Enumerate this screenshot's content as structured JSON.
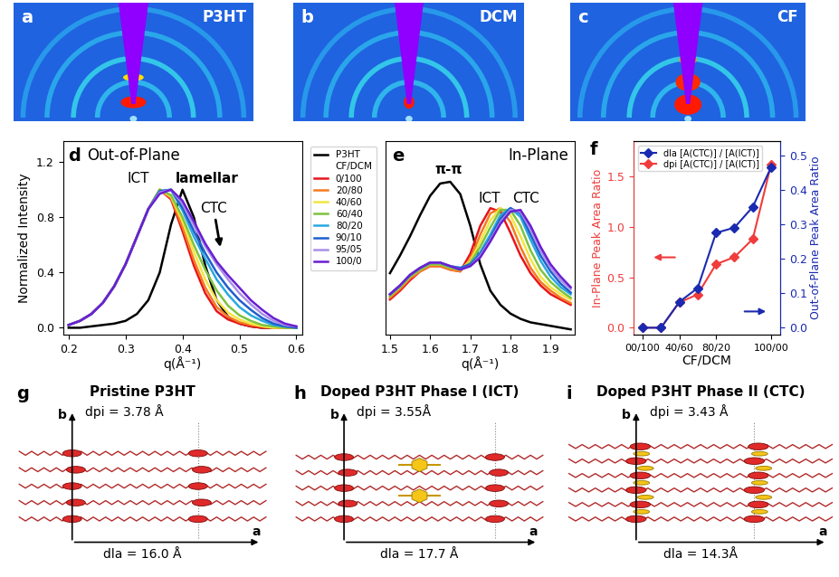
{
  "images": [
    {
      "label": "a",
      "title": "P3HT"
    },
    {
      "label": "b",
      "title": "DCM"
    },
    {
      "label": "c",
      "title": "CF"
    }
  ],
  "chart_data": [
    {
      "label": "d",
      "type": "line",
      "title": "Out-of-Plane",
      "xlabel": "q(Å⁻¹)",
      "ylabel": "Normalized Intensity",
      "annotations": [
        "ICT",
        "lamellar",
        "CTC"
      ],
      "legend_header": "CF/DCM",
      "x": [
        0.2,
        0.22,
        0.24,
        0.26,
        0.28,
        0.3,
        0.32,
        0.34,
        0.36,
        0.38,
        0.4,
        0.42,
        0.44,
        0.46,
        0.48,
        0.5,
        0.52,
        0.54,
        0.56,
        0.58,
        0.6
      ],
      "xlim": [
        0.19,
        0.61
      ],
      "xticks": [
        0.2,
        0.3,
        0.4,
        0.5,
        0.6
      ],
      "ylim": [
        -0.05,
        1.35
      ],
      "yticks": [
        0.0,
        0.4,
        0.8,
        1.2
      ],
      "series": [
        {
          "name": "P3HT",
          "color": "#000000",
          "values": [
            0,
            0,
            0.01,
            0.02,
            0.03,
            0.05,
            0.1,
            0.2,
            0.4,
            0.75,
            1.0,
            0.8,
            0.45,
            0.2,
            0.08,
            0.03,
            0.01,
            0,
            0,
            0,
            0
          ]
        },
        {
          "name": "0/100",
          "color": "#e8151b",
          "values": [
            0.02,
            0.05,
            0.1,
            0.18,
            0.3,
            0.46,
            0.66,
            0.86,
            1.0,
            0.93,
            0.7,
            0.45,
            0.25,
            0.12,
            0.06,
            0.03,
            0.01,
            0,
            0,
            0,
            0
          ]
        },
        {
          "name": "20/80",
          "color": "#f47b20",
          "values": [
            0.02,
            0.05,
            0.1,
            0.18,
            0.3,
            0.46,
            0.66,
            0.86,
            1.0,
            0.94,
            0.73,
            0.49,
            0.29,
            0.15,
            0.08,
            0.04,
            0.02,
            0.01,
            0,
            0,
            0
          ]
        },
        {
          "name": "40/60",
          "color": "#f2e640",
          "values": [
            0.02,
            0.05,
            0.1,
            0.18,
            0.3,
            0.46,
            0.66,
            0.86,
            1.0,
            0.95,
            0.77,
            0.55,
            0.35,
            0.2,
            0.11,
            0.06,
            0.03,
            0.01,
            0,
            0,
            0
          ]
        },
        {
          "name": "60/40",
          "color": "#7dc242",
          "values": [
            0.02,
            0.05,
            0.1,
            0.18,
            0.3,
            0.46,
            0.66,
            0.86,
            1.0,
            0.96,
            0.8,
            0.6,
            0.42,
            0.27,
            0.16,
            0.09,
            0.05,
            0.02,
            0.01,
            0,
            0
          ]
        },
        {
          "name": "80/20",
          "color": "#29a9e0",
          "values": [
            0.02,
            0.05,
            0.1,
            0.18,
            0.3,
            0.46,
            0.66,
            0.86,
            0.99,
            1.0,
            0.85,
            0.66,
            0.5,
            0.35,
            0.24,
            0.15,
            0.09,
            0.05,
            0.02,
            0.01,
            0
          ]
        },
        {
          "name": "90/10",
          "color": "#1f5fce",
          "values": [
            0.02,
            0.05,
            0.1,
            0.18,
            0.3,
            0.46,
            0.66,
            0.86,
            0.99,
            1.0,
            0.87,
            0.7,
            0.54,
            0.4,
            0.29,
            0.2,
            0.13,
            0.07,
            0.03,
            0.01,
            0
          ]
        },
        {
          "name": "95/05",
          "color": "#a890e8",
          "values": [
            0.02,
            0.05,
            0.1,
            0.18,
            0.3,
            0.46,
            0.66,
            0.86,
            0.98,
            1.0,
            0.9,
            0.74,
            0.59,
            0.46,
            0.35,
            0.25,
            0.17,
            0.1,
            0.05,
            0.02,
            0.01
          ]
        },
        {
          "name": "100/0",
          "color": "#6a1fd0",
          "values": [
            0.02,
            0.05,
            0.1,
            0.18,
            0.3,
            0.46,
            0.66,
            0.86,
            0.97,
            1.0,
            0.92,
            0.77,
            0.61,
            0.48,
            0.38,
            0.29,
            0.2,
            0.13,
            0.07,
            0.03,
            0.01
          ]
        }
      ]
    },
    {
      "label": "e",
      "type": "line",
      "title": "In-Plane",
      "xlabel": "q(Å⁻¹)",
      "annotations": [
        "π-π",
        "ICT",
        "CTC"
      ],
      "tick_labels": "x",
      "x": [
        1.5,
        1.525,
        1.55,
        1.575,
        1.6,
        1.625,
        1.65,
        1.675,
        1.7,
        1.725,
        1.75,
        1.775,
        1.8,
        1.825,
        1.85,
        1.875,
        1.9,
        1.925,
        1.95
      ],
      "xlim": [
        1.49,
        1.96
      ],
      "xticks": [
        1.5,
        1.6,
        1.7,
        1.8,
        1.9
      ],
      "ylim": [
        0.1,
        1.2
      ],
      "yticks": [],
      "series": [
        {
          "name": "P3HT",
          "color": "#000000",
          "values": [
            0.45,
            0.55,
            0.66,
            0.78,
            0.89,
            0.96,
            0.97,
            0.9,
            0.72,
            0.5,
            0.35,
            0.27,
            0.22,
            0.19,
            0.17,
            0.16,
            0.15,
            0.14,
            0.13
          ]
        },
        {
          "name": "0/100",
          "color": "#e8151b",
          "values": [
            0.3,
            0.35,
            0.41,
            0.46,
            0.49,
            0.49,
            0.47,
            0.46,
            0.56,
            0.72,
            0.82,
            0.8,
            0.68,
            0.55,
            0.45,
            0.38,
            0.33,
            0.3,
            0.27
          ]
        },
        {
          "name": "20/80",
          "color": "#f47b20",
          "values": [
            0.31,
            0.36,
            0.42,
            0.46,
            0.49,
            0.49,
            0.47,
            0.46,
            0.53,
            0.67,
            0.79,
            0.82,
            0.74,
            0.6,
            0.48,
            0.4,
            0.35,
            0.31,
            0.28
          ]
        },
        {
          "name": "40/60",
          "color": "#f2e640",
          "values": [
            0.32,
            0.37,
            0.43,
            0.47,
            0.5,
            0.5,
            0.48,
            0.47,
            0.52,
            0.63,
            0.75,
            0.82,
            0.78,
            0.66,
            0.53,
            0.43,
            0.37,
            0.33,
            0.3
          ]
        },
        {
          "name": "60/40",
          "color": "#7dc242",
          "values": [
            0.32,
            0.37,
            0.43,
            0.47,
            0.5,
            0.5,
            0.48,
            0.47,
            0.51,
            0.6,
            0.71,
            0.81,
            0.81,
            0.72,
            0.58,
            0.47,
            0.4,
            0.35,
            0.31
          ]
        },
        {
          "name": "80/20",
          "color": "#29a9e0",
          "values": [
            0.33,
            0.38,
            0.44,
            0.48,
            0.51,
            0.51,
            0.49,
            0.48,
            0.5,
            0.57,
            0.67,
            0.78,
            0.82,
            0.77,
            0.64,
            0.52,
            0.43,
            0.37,
            0.33
          ]
        },
        {
          "name": "90/10",
          "color": "#1f5fce",
          "values": [
            0.33,
            0.38,
            0.44,
            0.48,
            0.51,
            0.51,
            0.49,
            0.48,
            0.5,
            0.56,
            0.65,
            0.76,
            0.82,
            0.79,
            0.67,
            0.55,
            0.46,
            0.39,
            0.34
          ]
        },
        {
          "name": "95/05",
          "color": "#a890e8",
          "values": [
            0.33,
            0.38,
            0.44,
            0.48,
            0.51,
            0.51,
            0.49,
            0.47,
            0.49,
            0.55,
            0.64,
            0.74,
            0.81,
            0.8,
            0.7,
            0.58,
            0.48,
            0.41,
            0.36
          ]
        },
        {
          "name": "100/0",
          "color": "#6a1fd0",
          "values": [
            0.33,
            0.38,
            0.44,
            0.48,
            0.51,
            0.51,
            0.49,
            0.47,
            0.49,
            0.54,
            0.63,
            0.73,
            0.8,
            0.81,
            0.72,
            0.6,
            0.5,
            0.43,
            0.37
          ]
        }
      ]
    },
    {
      "label": "f",
      "type": "line",
      "xlabel": "CF/DCM",
      "ylabel": "In-Plane Peak Area Ratio",
      "y2label": "Out-of-Plane Peak Area Ratio",
      "categories": [
        "00/100",
        null,
        "40/60",
        null,
        "80/20",
        null,
        null,
        "100/00"
      ],
      "ylim": [
        -0.07,
        1.85
      ],
      "yticks": [
        0.0,
        0.5,
        1.0,
        1.5
      ],
      "y2lim": [
        -0.02,
        0.54
      ],
      "y2ticks": [
        0.0,
        0.1,
        0.2,
        0.3,
        0.4,
        0.5
      ],
      "legend": "upper left",
      "series": [
        {
          "name": "dla [A(CTC)] / [A(ICT)]",
          "color": "#1a2ab0",
          "marker": "diamond",
          "axis": "y2",
          "values": [
            0.0,
            0.0,
            0.075,
            0.115,
            0.275,
            0.29,
            0.35,
            0.465
          ]
        },
        {
          "name": "dpi [A(CTC)] / [A(ICT)]",
          "color": "#f03c3c",
          "marker": "diamond",
          "values": [
            0.0,
            0.0,
            0.25,
            0.33,
            0.63,
            0.7,
            0.88,
            1.62
          ]
        }
      ]
    }
  ],
  "schematics": [
    {
      "label": "g",
      "title": "Pristine P3HT",
      "d_pi": "dpi = 3.78 Å",
      "d_la": "dla = 16.0 Å",
      "axis_b": "b",
      "axis_a": "a"
    },
    {
      "label": "h",
      "title": "Doped P3HT Phase I (ICT)",
      "d_pi": "dpi = 3.55Å",
      "d_la": "dla = 17.7 Å",
      "axis_b": "b",
      "axis_a": "a"
    },
    {
      "label": "i",
      "title": "Doped P3HT Phase II (CTC)",
      "d_pi": "dpi = 3.43 Å",
      "d_la": "dla = 14.3Å",
      "axis_b": "b",
      "axis_a": "a"
    }
  ]
}
